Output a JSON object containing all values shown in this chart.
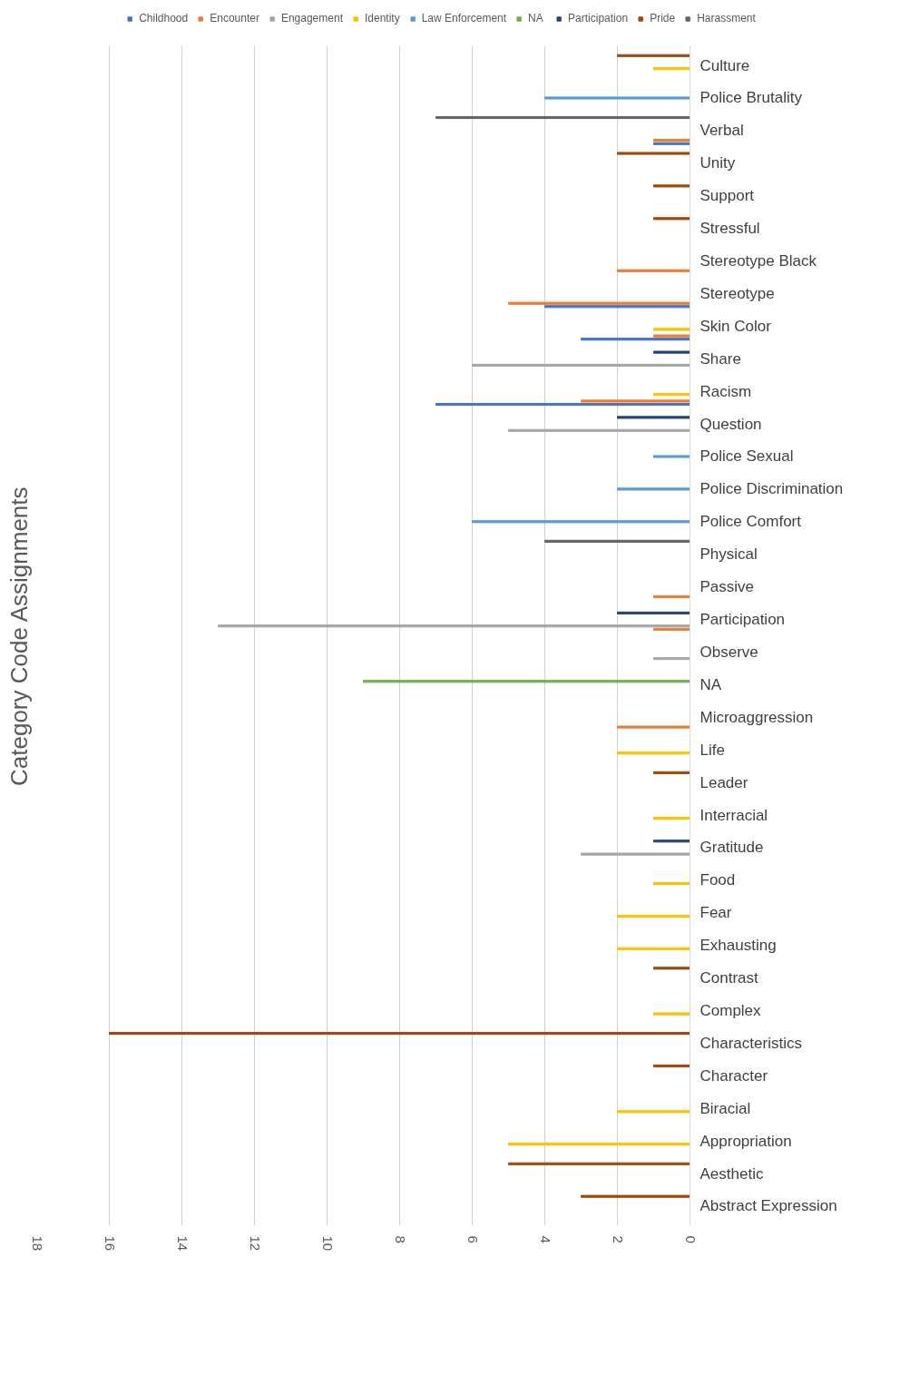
{
  "chart_data": {
    "type": "bar",
    "orientation": "horizontal",
    "title": "Category Code Assignments",
    "categories": [
      "Culture",
      "Police Brutality",
      "Verbal",
      "Unity",
      "Support",
      "Stressful",
      "Stereotype Black",
      "Stereotype",
      "Skin Color",
      "Share",
      "Racism",
      "Question",
      "Police Sexual",
      "Police Discrimination",
      "Police Comfort",
      "Physical",
      "Passive",
      "Participation",
      "Observe",
      "NA",
      "Microaggression",
      "Life",
      "Leader",
      "Interracial",
      "Gratitude",
      "Food",
      "Fear",
      "Exhausting",
      "Contrast",
      "Complex",
      "Characteristics",
      "Character",
      "Biracial",
      "Appropriation",
      "Aesthetic",
      "Abstract Expression"
    ],
    "series": [
      {
        "name": "Childhood",
        "color": "#4472c4",
        "values": [
          null,
          null,
          1,
          null,
          null,
          null,
          null,
          4,
          3,
          null,
          7,
          null,
          null,
          null,
          null,
          null,
          null,
          null,
          null,
          null,
          null,
          null,
          null,
          null,
          null,
          null,
          null,
          null,
          null,
          null,
          null,
          null,
          null,
          null,
          null,
          null
        ]
      },
      {
        "name": "Encounter",
        "color": "#ed7d31",
        "values": [
          null,
          null,
          1,
          null,
          null,
          null,
          2,
          5,
          1,
          null,
          3,
          null,
          null,
          null,
          null,
          null,
          1,
          1,
          null,
          null,
          2,
          null,
          null,
          null,
          null,
          null,
          null,
          null,
          null,
          null,
          null,
          null,
          null,
          null,
          null,
          null
        ]
      },
      {
        "name": "Engagement",
        "color": "#a5a5a5",
        "values": [
          null,
          null,
          null,
          null,
          null,
          null,
          null,
          null,
          null,
          6,
          null,
          5,
          null,
          null,
          null,
          null,
          null,
          13,
          1,
          null,
          null,
          null,
          null,
          null,
          3,
          null,
          null,
          null,
          null,
          null,
          null,
          null,
          null,
          null,
          null,
          null
        ]
      },
      {
        "name": "Identity",
        "color": "#ffc000",
        "values": [
          1,
          null,
          null,
          null,
          null,
          null,
          null,
          null,
          1,
          null,
          1,
          null,
          null,
          null,
          null,
          null,
          null,
          null,
          null,
          null,
          null,
          2,
          null,
          1,
          null,
          1,
          2,
          2,
          null,
          1,
          null,
          null,
          2,
          5,
          null,
          null
        ]
      },
      {
        "name": "Law Enforcement",
        "color": "#5b9bd5",
        "values": [
          null,
          4,
          null,
          null,
          null,
          null,
          null,
          null,
          null,
          null,
          null,
          null,
          1,
          2,
          6,
          null,
          null,
          null,
          null,
          null,
          null,
          null,
          null,
          null,
          null,
          null,
          null,
          null,
          null,
          null,
          null,
          null,
          null,
          null,
          null,
          null
        ]
      },
      {
        "name": "NA",
        "color": "#70ad47",
        "values": [
          null,
          null,
          null,
          null,
          null,
          null,
          null,
          null,
          null,
          null,
          null,
          null,
          null,
          null,
          null,
          null,
          null,
          null,
          null,
          9,
          null,
          null,
          null,
          null,
          null,
          null,
          null,
          null,
          null,
          null,
          null,
          null,
          null,
          null,
          null,
          null
        ]
      },
      {
        "name": "Participation",
        "color": "#264478",
        "values": [
          null,
          null,
          null,
          null,
          null,
          null,
          null,
          null,
          null,
          1,
          null,
          2,
          null,
          null,
          null,
          null,
          null,
          2,
          null,
          null,
          null,
          null,
          null,
          null,
          1,
          null,
          null,
          null,
          null,
          null,
          null,
          null,
          null,
          null,
          null,
          null
        ]
      },
      {
        "name": "Pride",
        "color": "#9e480e",
        "values": [
          2,
          null,
          null,
          2,
          1,
          1,
          null,
          null,
          null,
          null,
          null,
          null,
          null,
          null,
          null,
          null,
          null,
          null,
          null,
          null,
          null,
          null,
          1,
          null,
          null,
          null,
          null,
          null,
          1,
          null,
          16,
          1,
          null,
          null,
          5,
          3
        ]
      },
      {
        "name": "Harassment",
        "color": "#636363",
        "values": [
          null,
          null,
          7,
          null,
          null,
          null,
          null,
          null,
          null,
          null,
          null,
          null,
          null,
          null,
          null,
          4,
          null,
          null,
          null,
          null,
          null,
          null,
          null,
          null,
          null,
          null,
          null,
          null,
          null,
          null,
          null,
          null,
          null,
          null,
          null,
          null
        ]
      }
    ],
    "xlim": [
      18,
      0
    ],
    "xticks": [
      0,
      2,
      4,
      6,
      8,
      10,
      12,
      14,
      16,
      18
    ],
    "grid": "x",
    "legend": "top"
  }
}
